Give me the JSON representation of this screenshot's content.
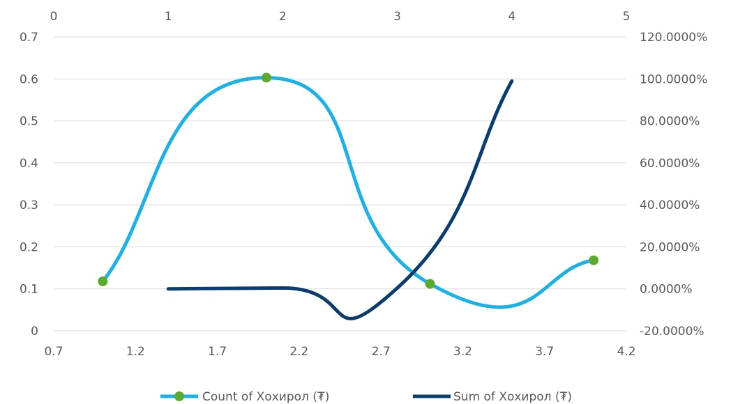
{
  "chart_data": {
    "type": "scatter",
    "x_axis_bottom": {
      "min": 0.7,
      "max": 4.2,
      "ticks": [
        "0.7",
        "1.2",
        "1.7",
        "2.2",
        "2.7",
        "3.2",
        "3.7",
        "4.2"
      ]
    },
    "x_axis_top": {
      "min": 0,
      "max": 5,
      "ticks": [
        "0",
        "1",
        "2",
        "3",
        "4",
        "5"
      ]
    },
    "y_axis_left": {
      "min": 0,
      "max": 0.7,
      "ticks": [
        "0",
        "0.1",
        "0.2",
        "0.3",
        "0.4",
        "0.5",
        "0.6",
        "0.7"
      ]
    },
    "y_axis_right": {
      "min": -20,
      "max": 120,
      "ticks": [
        "-20.0000%",
        "0.0000%",
        "20.0000%",
        "40.0000%",
        "60.0000%",
        "80.0000%",
        "100.0000%",
        "120.0000%"
      ]
    },
    "grid": true,
    "legend_position": "bottom",
    "series": [
      {
        "name": "Count of Хохирол (₮)",
        "axes": "bottom-left",
        "smooth": true,
        "markers": true,
        "color": "#1ab0e8",
        "marker_color": "#5aaa2e",
        "x": [
          1,
          2,
          3,
          4
        ],
        "y": [
          0.118,
          0.603,
          0.112,
          0.168
        ]
      },
      {
        "name": "Sum of Хохирол (₮)",
        "axes": "top-right",
        "smooth": true,
        "markers": false,
        "color": "#0a3d6e",
        "x": [
          1,
          2,
          3,
          4
        ],
        "y": [
          0.0,
          0.4,
          0.4,
          99.0
        ]
      }
    ]
  }
}
